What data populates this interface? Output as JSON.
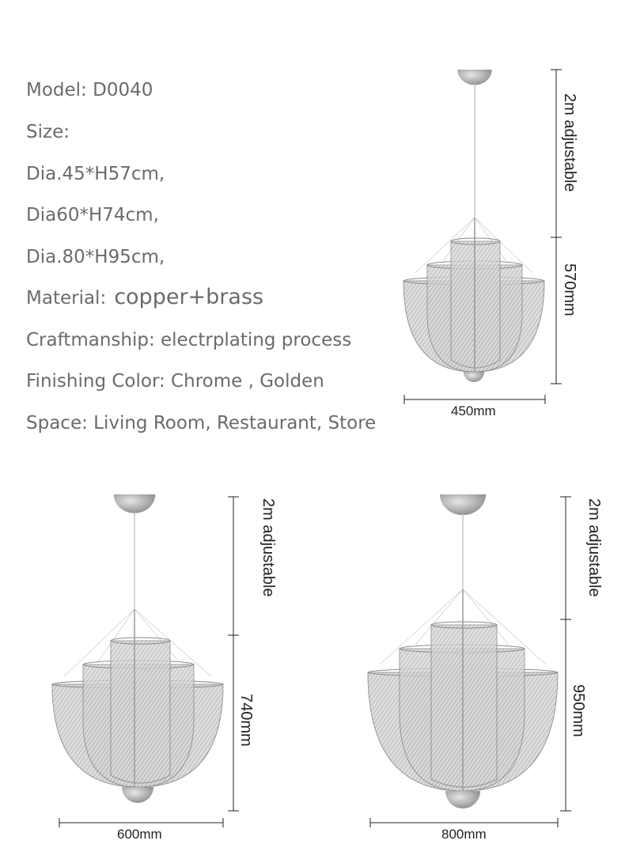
{
  "specs": {
    "model": "Model: D0040",
    "size": "Size:",
    "size_1": "Dia.45*H57cm,",
    "size_2": "Dia60*H74cm,",
    "size_3": "Dia.80*H95cm,",
    "material_label": "Material:",
    "material_value": "copper+brass",
    "craftmanship": "Craftmanship: electrplating process",
    "finishing": "Finishing Color: Chrome , Golden",
    "space": "Space: Living Room, Restaurant, Store"
  },
  "lamps": [
    {
      "cable_label": "2m adjustable",
      "height_label": "570mm",
      "width_label": "450mm"
    },
    {
      "cable_label": "2m adjustable",
      "height_label": "740mm",
      "width_label": "600mm"
    },
    {
      "cable_label": "2m adjustable",
      "height_label": "950mm",
      "width_label": "800mm"
    }
  ],
  "colors": {
    "text": "#6b6b6b",
    "mesh": "#9a9a9a",
    "metal": "#a8a8a8",
    "dimension": "#222222"
  }
}
